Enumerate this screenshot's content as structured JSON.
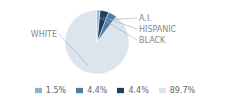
{
  "chart_data": {
    "type": "pie",
    "categories": [
      "WHITE",
      "A.I.",
      "HISPANIC",
      "BLACK"
    ],
    "values": [
      89.7,
      4.4,
      4.4,
      1.5
    ],
    "value_labels": [
      "89.7%",
      "4.4%",
      "4.4%",
      "1.5%"
    ],
    "colors": [
      "#dce4ee",
      "#4d7fa8",
      "#1b3f5e",
      "#93afc4"
    ],
    "legend": "bottom"
  }
}
